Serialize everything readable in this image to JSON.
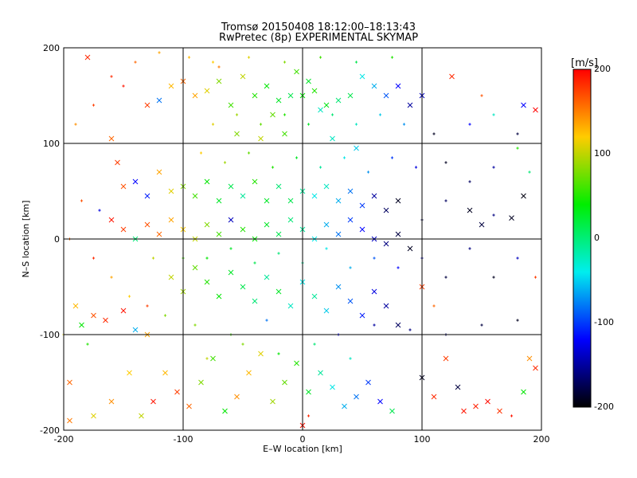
{
  "title": {
    "line1": "Tromsø 20150408 18:12:00–18:13:43",
    "line2": "RwPretec (8p) EXPERIMENTAL SKYMAP"
  },
  "colorbar": {
    "unit": "[m/s]",
    "range": [
      -200,
      200
    ],
    "ticks": [
      "200",
      "100",
      "0",
      "-100",
      "-200"
    ],
    "colors": [
      "#ff0000",
      "#ffcc00",
      "#00ee00",
      "#00eeee",
      "#0000ff",
      "#000000"
    ]
  },
  "chart_data": {
    "type": "scatter",
    "title": "Tromsø 20150408 18:12:00–18:13:43 RwPretec (8p) EXPERIMENTAL SKYMAP",
    "xlabel": "E–W location [km]",
    "ylabel": "N–S location [km]",
    "xlim": [
      -200,
      200
    ],
    "ylim": [
      -200,
      200
    ],
    "xticks": [
      -200,
      -100,
      0,
      100,
      200
    ],
    "yticks": [
      -200,
      -100,
      0,
      100,
      200
    ],
    "xtick_labels": [
      "-200",
      "-100",
      "0",
      "100",
      "200"
    ],
    "ytick_labels": [
      "-200",
      "-100",
      "0",
      "100",
      "200"
    ],
    "grid": true,
    "color_variable": "velocity [m/s]",
    "color_range": [
      -200,
      200
    ],
    "markers": [
      "x",
      "+"
    ],
    "point_format": "[x_km, y_km, velocity_m_s, marker]",
    "points": [
      [
        -180,
        190,
        180,
        "x"
      ],
      [
        -150,
        160,
        190,
        "+"
      ],
      [
        -130,
        140,
        170,
        "x"
      ],
      [
        -120,
        145,
        -80,
        "x"
      ],
      [
        -110,
        160,
        110,
        "x"
      ],
      [
        -100,
        165,
        150,
        "x"
      ],
      [
        -90,
        150,
        120,
        "x"
      ],
      [
        -80,
        155,
        90,
        "x"
      ],
      [
        -70,
        165,
        60,
        "x"
      ],
      [
        -60,
        140,
        40,
        "x"
      ],
      [
        -50,
        170,
        80,
        "x"
      ],
      [
        -40,
        150,
        30,
        "x"
      ],
      [
        -30,
        160,
        20,
        "x"
      ],
      [
        -20,
        145,
        10,
        "x"
      ],
      [
        -10,
        150,
        0,
        "x"
      ],
      [
        0,
        150,
        20,
        "x"
      ],
      [
        10,
        155,
        30,
        "x"
      ],
      [
        20,
        140,
        15,
        "x"
      ],
      [
        30,
        145,
        -10,
        "x"
      ],
      [
        40,
        150,
        0,
        "x"
      ],
      [
        -5,
        175,
        40,
        "x"
      ],
      [
        5,
        165,
        10,
        "x"
      ],
      [
        15,
        135,
        -30,
        "x"
      ],
      [
        -25,
        130,
        50,
        "x"
      ],
      [
        50,
        170,
        -40,
        "x"
      ],
      [
        60,
        160,
        -60,
        "x"
      ],
      [
        70,
        150,
        -90,
        "x"
      ],
      [
        80,
        160,
        -120,
        "x"
      ],
      [
        90,
        140,
        -150,
        "x"
      ],
      [
        100,
        150,
        -140,
        "x"
      ],
      [
        125,
        170,
        180,
        "x"
      ],
      [
        150,
        150,
        160,
        "+"
      ],
      [
        185,
        140,
        -120,
        "x"
      ],
      [
        195,
        135,
        200,
        "x"
      ],
      [
        -70,
        180,
        140,
        "+"
      ],
      [
        -55,
        110,
        60,
        "x"
      ],
      [
        -35,
        105,
        80,
        "x"
      ],
      [
        -15,
        110,
        40,
        "x"
      ],
      [
        25,
        105,
        -30,
        "x"
      ],
      [
        45,
        95,
        -50,
        "x"
      ],
      [
        -160,
        105,
        150,
        "x"
      ],
      [
        -155,
        80,
        170,
        "x"
      ],
      [
        -150,
        55,
        160,
        "x"
      ],
      [
        -140,
        60,
        -120,
        "x"
      ],
      [
        -130,
        45,
        -110,
        "x"
      ],
      [
        -120,
        70,
        120,
        "x"
      ],
      [
        -110,
        50,
        90,
        "x"
      ],
      [
        -100,
        55,
        60,
        "x"
      ],
      [
        -90,
        45,
        40,
        "x"
      ],
      [
        -80,
        60,
        20,
        "x"
      ],
      [
        -70,
        40,
        10,
        "x"
      ],
      [
        -60,
        55,
        0,
        "x"
      ],
      [
        -50,
        45,
        -20,
        "x"
      ],
      [
        -40,
        60,
        30,
        "x"
      ],
      [
        -30,
        40,
        10,
        "x"
      ],
      [
        -20,
        55,
        -10,
        "x"
      ],
      [
        -10,
        40,
        0,
        "x"
      ],
      [
        0,
        50,
        -20,
        "x"
      ],
      [
        10,
        45,
        -40,
        "x"
      ],
      [
        20,
        55,
        -30,
        "x"
      ],
      [
        30,
        40,
        -60,
        "x"
      ],
      [
        40,
        50,
        -80,
        "x"
      ],
      [
        50,
        35,
        -100,
        "x"
      ],
      [
        60,
        45,
        -150,
        "x"
      ],
      [
        70,
        30,
        -170,
        "x"
      ],
      [
        80,
        40,
        -190,
        "x"
      ],
      [
        100,
        20,
        -180,
        "+"
      ],
      [
        120,
        40,
        -170,
        "+"
      ],
      [
        140,
        30,
        -190,
        "x"
      ],
      [
        150,
        15,
        -180,
        "x"
      ],
      [
        160,
        25,
        -160,
        "+"
      ],
      [
        175,
        22,
        -190,
        "x"
      ],
      [
        185,
        45,
        -195,
        "x"
      ],
      [
        -170,
        30,
        -130,
        "+"
      ],
      [
        -160,
        20,
        190,
        "x"
      ],
      [
        -150,
        10,
        170,
        "x"
      ],
      [
        -140,
        0,
        -10,
        "x"
      ],
      [
        -130,
        15,
        160,
        "x"
      ],
      [
        -120,
        5,
        150,
        "x"
      ],
      [
        -110,
        20,
        120,
        "x"
      ],
      [
        -100,
        10,
        100,
        "x"
      ],
      [
        -90,
        0,
        80,
        "x"
      ],
      [
        -80,
        15,
        60,
        "x"
      ],
      [
        -70,
        5,
        40,
        "x"
      ],
      [
        -60,
        20,
        -140,
        "x"
      ],
      [
        -50,
        10,
        30,
        "x"
      ],
      [
        -40,
        0,
        20,
        "x"
      ],
      [
        -30,
        15,
        10,
        "x"
      ],
      [
        -20,
        5,
        0,
        "x"
      ],
      [
        -10,
        20,
        -10,
        "x"
      ],
      [
        0,
        10,
        -20,
        "x"
      ],
      [
        10,
        0,
        -40,
        "x"
      ],
      [
        20,
        15,
        -60,
        "x"
      ],
      [
        30,
        5,
        -80,
        "x"
      ],
      [
        40,
        20,
        -100,
        "x"
      ],
      [
        50,
        10,
        -120,
        "x"
      ],
      [
        60,
        0,
        -140,
        "x"
      ],
      [
        70,
        -5,
        -160,
        "x"
      ],
      [
        80,
        5,
        -180,
        "x"
      ],
      [
        90,
        -10,
        -190,
        "x"
      ],
      [
        -190,
        -70,
        110,
        "x"
      ],
      [
        -185,
        -90,
        20,
        "x"
      ],
      [
        -175,
        -80,
        160,
        "x"
      ],
      [
        -165,
        -85,
        180,
        "x"
      ],
      [
        -150,
        -75,
        190,
        "x"
      ],
      [
        -140,
        -95,
        -60,
        "x"
      ],
      [
        -130,
        -100,
        120,
        "x"
      ],
      [
        -110,
        -40,
        80,
        "x"
      ],
      [
        -100,
        -55,
        70,
        "x"
      ],
      [
        -90,
        -30,
        50,
        "x"
      ],
      [
        -80,
        -45,
        30,
        "x"
      ],
      [
        -70,
        -60,
        20,
        "x"
      ],
      [
        -60,
        -35,
        10,
        "x"
      ],
      [
        -50,
        -50,
        0,
        "x"
      ],
      [
        -40,
        -65,
        -10,
        "x"
      ],
      [
        -30,
        -40,
        -20,
        "x"
      ],
      [
        -20,
        -55,
        10,
        "x"
      ],
      [
        -10,
        -70,
        -30,
        "x"
      ],
      [
        0,
        -45,
        -40,
        "x"
      ],
      [
        10,
        -60,
        -20,
        "x"
      ],
      [
        20,
        -75,
        -50,
        "x"
      ],
      [
        30,
        -50,
        -70,
        "x"
      ],
      [
        40,
        -65,
        -90,
        "x"
      ],
      [
        50,
        -80,
        -110,
        "x"
      ],
      [
        60,
        -55,
        -130,
        "x"
      ],
      [
        70,
        -70,
        -150,
        "x"
      ],
      [
        80,
        -90,
        -170,
        "x"
      ],
      [
        100,
        -50,
        170,
        "x"
      ],
      [
        110,
        -70,
        150,
        "+"
      ],
      [
        -5,
        -130,
        30,
        "x"
      ],
      [
        -15,
        -150,
        50,
        "x"
      ],
      [
        5,
        -160,
        10,
        "x"
      ],
      [
        15,
        -140,
        -20,
        "x"
      ],
      [
        25,
        -155,
        -40,
        "x"
      ],
      [
        -25,
        -170,
        70,
        "x"
      ],
      [
        -35,
        -120,
        90,
        "x"
      ],
      [
        -45,
        -140,
        110,
        "x"
      ],
      [
        -55,
        -165,
        130,
        "x"
      ],
      [
        -65,
        -180,
        20,
        "x"
      ],
      [
        -75,
        -125,
        40,
        "x"
      ],
      [
        -85,
        -150,
        60,
        "x"
      ],
      [
        -95,
        -175,
        150,
        "x"
      ],
      [
        -105,
        -160,
        170,
        "x"
      ],
      [
        -115,
        -140,
        110,
        "x"
      ],
      [
        -125,
        -170,
        190,
        "x"
      ],
      [
        -135,
        -185,
        80,
        "x"
      ],
      [
        -145,
        -140,
        100,
        "x"
      ],
      [
        -160,
        -170,
        130,
        "x"
      ],
      [
        -175,
        -185,
        90,
        "x"
      ],
      [
        -195,
        -190,
        140,
        "x"
      ],
      [
        35,
        -175,
        -60,
        "x"
      ],
      [
        45,
        -165,
        -80,
        "x"
      ],
      [
        55,
        -150,
        -100,
        "x"
      ],
      [
        65,
        -170,
        -120,
        "x"
      ],
      [
        75,
        -180,
        0,
        "x"
      ],
      [
        0,
        -195,
        190,
        "x"
      ],
      [
        5,
        -185,
        180,
        "+"
      ],
      [
        100,
        -145,
        -190,
        "x"
      ],
      [
        110,
        -165,
        180,
        "x"
      ],
      [
        120,
        -125,
        170,
        "x"
      ],
      [
        130,
        -155,
        -180,
        "x"
      ],
      [
        135,
        -180,
        190,
        "x"
      ],
      [
        145,
        -175,
        185,
        "x"
      ],
      [
        155,
        -170,
        195,
        "x"
      ],
      [
        165,
        -180,
        175,
        "x"
      ],
      [
        175,
        -185,
        190,
        "+"
      ],
      [
        185,
        -160,
        20,
        "x"
      ],
      [
        190,
        -125,
        130,
        "x"
      ],
      [
        195,
        -135,
        180,
        "x"
      ],
      [
        -200,
        -100,
        90,
        "+"
      ],
      [
        -195,
        -150,
        150,
        "x"
      ],
      [
        -180,
        -110,
        30,
        "+"
      ],
      [
        -130,
        -70,
        170,
        "+"
      ],
      [
        -90,
        -90,
        60,
        "+"
      ],
      [
        -60,
        -100,
        40,
        "+"
      ],
      [
        -30,
        -85,
        -80,
        "+"
      ],
      [
        0,
        -100,
        -100,
        "+"
      ],
      [
        30,
        -100,
        -120,
        "+"
      ],
      [
        60,
        -90,
        -150,
        "+"
      ],
      [
        90,
        -95,
        -160,
        "+"
      ],
      [
        120,
        -100,
        -170,
        "+"
      ],
      [
        150,
        -90,
        -180,
        "+"
      ],
      [
        180,
        -85,
        -190,
        "+"
      ],
      [
        120,
        80,
        -190,
        "+"
      ],
      [
        140,
        60,
        -170,
        "+"
      ],
      [
        160,
        75,
        -150,
        "+"
      ],
      [
        180,
        95,
        30,
        "+"
      ],
      [
        190,
        70,
        -10,
        "+"
      ],
      [
        110,
        110,
        -190,
        "+"
      ],
      [
        -190,
        120,
        130,
        "+"
      ],
      [
        -175,
        140,
        170,
        "+"
      ],
      [
        -160,
        170,
        180,
        "+"
      ],
      [
        -140,
        185,
        150,
        "+"
      ],
      [
        -120,
        195,
        120,
        "+"
      ],
      [
        -95,
        190,
        110,
        "+"
      ],
      [
        -75,
        185,
        100,
        "+"
      ],
      [
        -45,
        190,
        90,
        "+"
      ],
      [
        -15,
        185,
        60,
        "+"
      ],
      [
        15,
        190,
        40,
        "+"
      ],
      [
        45,
        185,
        0,
        "+"
      ],
      [
        75,
        190,
        30,
        "+"
      ],
      [
        140,
        120,
        -120,
        "+"
      ],
      [
        160,
        130,
        -30,
        "+"
      ],
      [
        180,
        110,
        -180,
        "+"
      ],
      [
        -185,
        40,
        160,
        "+"
      ],
      [
        -195,
        0,
        150,
        "+"
      ],
      [
        -175,
        -20,
        180,
        "+"
      ],
      [
        -160,
        -40,
        120,
        "+"
      ],
      [
        -145,
        -60,
        100,
        "+"
      ],
      [
        -125,
        -20,
        80,
        "+"
      ],
      [
        -115,
        -80,
        60,
        "+"
      ],
      [
        -100,
        -20,
        40,
        "+"
      ],
      [
        -80,
        -20,
        20,
        "+"
      ],
      [
        -60,
        -10,
        10,
        "+"
      ],
      [
        -40,
        -25,
        0,
        "+"
      ],
      [
        -20,
        -15,
        -10,
        "+"
      ],
      [
        0,
        -25,
        -20,
        "+"
      ],
      [
        20,
        -10,
        -40,
        "+"
      ],
      [
        40,
        -30,
        -60,
        "+"
      ],
      [
        60,
        -20,
        -90,
        "+"
      ],
      [
        80,
        -30,
        -120,
        "+"
      ],
      [
        100,
        -20,
        -150,
        "+"
      ],
      [
        120,
        -40,
        -180,
        "+"
      ],
      [
        140,
        -10,
        -160,
        "+"
      ],
      [
        160,
        -40,
        -190,
        "+"
      ],
      [
        180,
        -20,
        -140,
        "+"
      ],
      [
        195,
        -40,
        170,
        "+"
      ],
      [
        -85,
        90,
        100,
        "+"
      ],
      [
        -65,
        80,
        70,
        "+"
      ],
      [
        -45,
        90,
        50,
        "+"
      ],
      [
        -25,
        75,
        30,
        "+"
      ],
      [
        -5,
        85,
        10,
        "+"
      ],
      [
        15,
        75,
        -20,
        "+"
      ],
      [
        35,
        85,
        -40,
        "+"
      ],
      [
        55,
        70,
        -70,
        "+"
      ],
      [
        75,
        85,
        -100,
        "+"
      ],
      [
        95,
        75,
        -130,
        "+"
      ],
      [
        -75,
        120,
        90,
        "+"
      ],
      [
        -55,
        130,
        70,
        "+"
      ],
      [
        -35,
        120,
        50,
        "+"
      ],
      [
        -15,
        130,
        30,
        "+"
      ],
      [
        5,
        120,
        10,
        "+"
      ],
      [
        25,
        130,
        -10,
        "+"
      ],
      [
        45,
        120,
        -30,
        "+"
      ],
      [
        65,
        130,
        -50,
        "+"
      ],
      [
        85,
        120,
        -70,
        "+"
      ],
      [
        -20,
        -120,
        20,
        "+"
      ],
      [
        10,
        -110,
        -10,
        "+"
      ],
      [
        40,
        -125,
        -30,
        "+"
      ],
      [
        -50,
        -110,
        60,
        "+"
      ],
      [
        -80,
        -125,
        80,
        "+"
      ]
    ]
  }
}
